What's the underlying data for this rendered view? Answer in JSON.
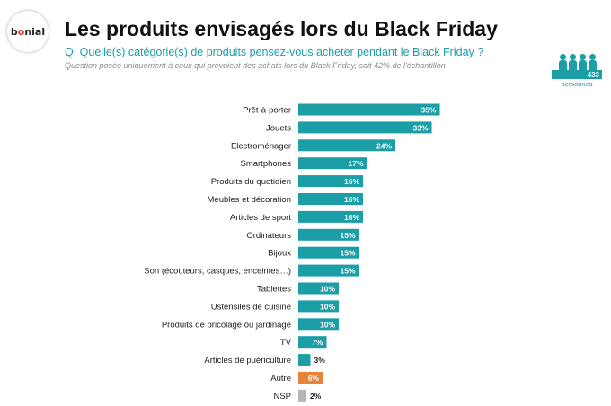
{
  "brand": {
    "text_main": "b",
    "text_accent": "o",
    "text_rest": "nial"
  },
  "header": {
    "title": "Les produits envisagés lors du Black Friday",
    "subtitle": "Q. Quelle(s) catégorie(s) de produits pensez-vous acheter pendant le Black Friday ?",
    "note": "Question posée uniquement à ceux qui prévoient des achats lors du Black Friday, soit 42% de l'échantillon"
  },
  "sample": {
    "count": "433",
    "label": "personnes",
    "icon": "people-icon"
  },
  "colors": {
    "main": "#1c9ea7",
    "other": "#e8843a",
    "nsp": "#b5b5b5",
    "title": "#111111"
  },
  "chart_data": {
    "type": "bar",
    "orientation": "horizontal",
    "categories": [
      "Prêt-à-porter",
      "Jouets",
      "Electroménager",
      "Smartphones",
      "Produits du quotidien",
      "Meubles et décoration",
      "Articles de sport",
      "Ordinateurs",
      "Bijoux",
      "Son (écouteurs, casques, enceintes…)",
      "Tablettes",
      "Ustensiles de cuisine",
      "Produits de bricolage ou jardinage",
      "TV",
      "Articles de puériculture",
      "Autre",
      "NSP"
    ],
    "values": [
      35,
      33,
      24,
      17,
      16,
      16,
      16,
      15,
      15,
      15,
      10,
      10,
      10,
      7,
      3,
      6,
      2
    ],
    "labels": [
      "35%",
      "33%",
      "24%",
      "17%",
      "16%",
      "16%",
      "16%",
      "15%",
      "15%",
      "15%",
      "10%",
      "10%",
      "10%",
      "7%",
      "3%",
      "6%",
      "2%"
    ],
    "colors": [
      "#1c9ea7",
      "#1c9ea7",
      "#1c9ea7",
      "#1c9ea7",
      "#1c9ea7",
      "#1c9ea7",
      "#1c9ea7",
      "#1c9ea7",
      "#1c9ea7",
      "#1c9ea7",
      "#1c9ea7",
      "#1c9ea7",
      "#1c9ea7",
      "#1c9ea7",
      "#1c9ea7",
      "#e8843a",
      "#b5b5b5"
    ],
    "unit": "%",
    "grid": false
  }
}
